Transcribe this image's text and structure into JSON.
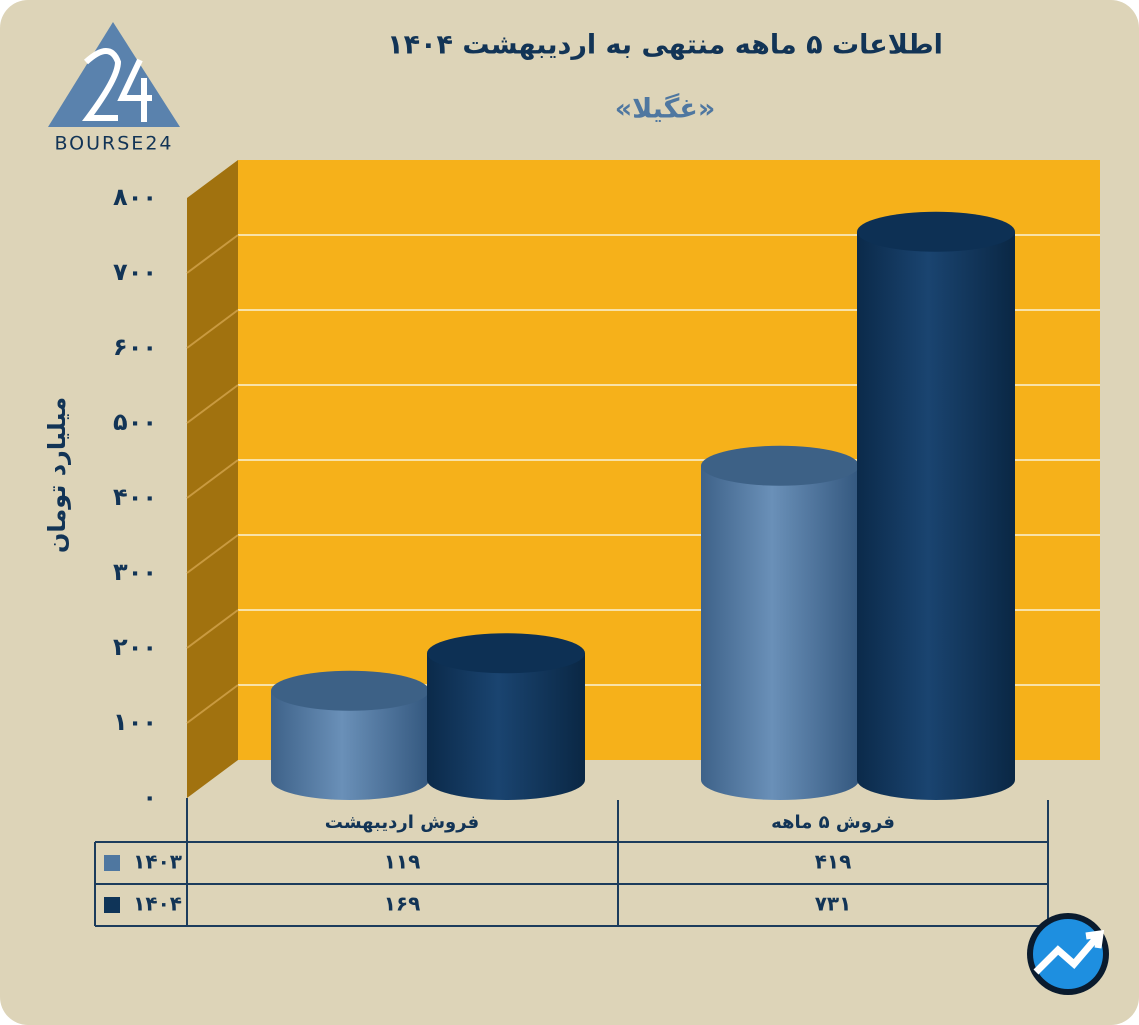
{
  "chart_data": {
    "type": "cylinder-bar",
    "title": "اطلاعات ۵ ماهه منتهی به اردیبهشت ۱۴۰۴",
    "subtitle": "«غگیلا»",
    "y_label": "میلیارد تومان",
    "logo_text": "BOURSE24",
    "categories": [
      "فروش اردیبهشت",
      "فروش ۵ ماهه"
    ],
    "series": [
      {
        "name": "۱۴۰۳",
        "color": "#4f77a0",
        "values": [
          119,
          419
        ],
        "value_labels": [
          "۱۱۹",
          "۴۱۹"
        ]
      },
      {
        "name": "۱۴۰۴",
        "color": "#0f3458",
        "values": [
          169,
          731
        ],
        "value_labels": [
          "۱۶۹",
          "۷۳۱"
        ]
      }
    ],
    "ylim": [
      0,
      800
    ],
    "yticks": [
      {
        "value": 0,
        "label": "۰"
      },
      {
        "value": 100,
        "label": "۱۰۰"
      },
      {
        "value": 200,
        "label": "۲۰۰"
      },
      {
        "value": 300,
        "label": "۳۰۰"
      },
      {
        "value": 400,
        "label": "۴۰۰"
      },
      {
        "value": 500,
        "label": "۵۰۰"
      },
      {
        "value": 600,
        "label": "۶۰۰"
      },
      {
        "value": 700,
        "label": "۷۰۰"
      },
      {
        "value": 800,
        "label": "۸۰۰"
      }
    ],
    "grid": true
  }
}
